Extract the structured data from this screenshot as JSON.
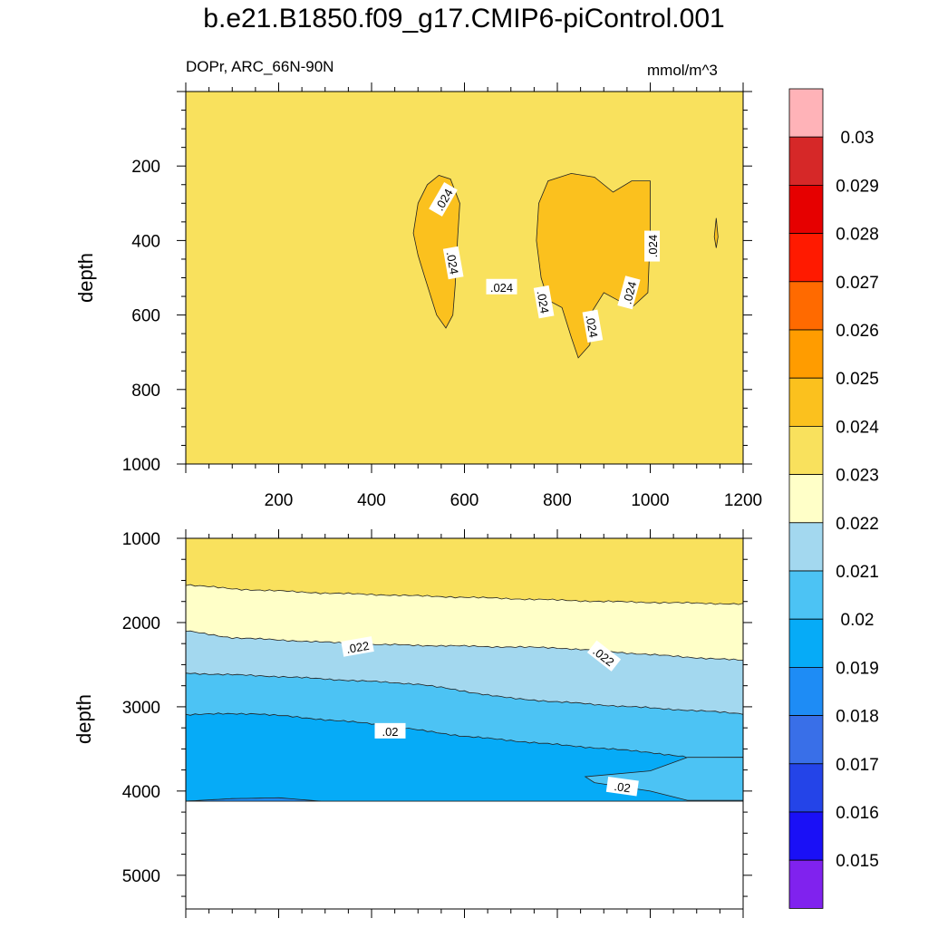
{
  "chart_data": [
    {
      "type": "heatmap",
      "title": "b.e21.B1850.f09_g17.CMIP6-piControl.001",
      "subtitle_left": "DOPr, ARC_66N-90N",
      "subtitle_right": "mmol/m^3",
      "ylabel": "depth",
      "xlabel": "",
      "xlim": [
        0,
        1200
      ],
      "ylim": [
        1000,
        0
      ],
      "x_ticks": [
        200,
        400,
        600,
        800,
        1000,
        1200
      ],
      "y_ticks": [
        200,
        400,
        600,
        800,
        1000
      ],
      "background_value": 0.0235,
      "regions": [
        {
          "name": "patch-1",
          "level": 0.024,
          "points": [
            [
              490,
              380
            ],
            [
              500,
              300
            ],
            [
              520,
              250
            ],
            [
              545,
              225
            ],
            [
              570,
              235
            ],
            [
              590,
              300
            ],
            [
              585,
              400
            ],
            [
              580,
              520
            ],
            [
              575,
              600
            ],
            [
              560,
              635
            ],
            [
              540,
              600
            ],
            [
              515,
              500
            ],
            [
              500,
              440
            ]
          ]
        },
        {
          "name": "patch-2",
          "level": 0.024,
          "points": [
            [
              755,
              400
            ],
            [
              760,
              300
            ],
            [
              780,
              240
            ],
            [
              830,
              220
            ],
            [
              880,
              230
            ],
            [
              920,
              270
            ],
            [
              960,
              240
            ],
            [
              1000,
              240
            ],
            [
              1000,
              380
            ],
            [
              995,
              540
            ],
            [
              960,
              580
            ],
            [
              930,
              560
            ],
            [
              900,
              540
            ],
            [
              875,
              590
            ],
            [
              870,
              680
            ],
            [
              845,
              715
            ],
            [
              830,
              660
            ],
            [
              810,
              580
            ],
            [
              780,
              560
            ],
            [
              765,
              500
            ]
          ]
        },
        {
          "name": "spike",
          "level": 0.024,
          "points": [
            [
              1138,
              390
            ],
            [
              1142,
              340
            ],
            [
              1146,
              390
            ],
            [
              1142,
              420
            ]
          ]
        }
      ],
      "contour_labels": [
        {
          "text": ".024",
          "x": 555,
          "y": 290,
          "angle": -60
        },
        {
          "text": ".024",
          "x": 575,
          "y": 460,
          "angle": 80
        },
        {
          "text": ".024",
          "x": 680,
          "y": 525,
          "angle": 0
        },
        {
          "text": ".024",
          "x": 770,
          "y": 565,
          "angle": 80
        },
        {
          "text": ".024",
          "x": 875,
          "y": 630,
          "angle": 80
        },
        {
          "text": ".024",
          "x": 955,
          "y": 540,
          "angle": -75
        },
        {
          "text": ".024",
          "x": 1005,
          "y": 415,
          "angle": -90
        }
      ]
    },
    {
      "type": "heatmap",
      "title": "",
      "ylabel": "depth",
      "xlabel": "",
      "xlim": [
        0,
        1200
      ],
      "ylim": [
        5400,
        1000
      ],
      "y_ticks": [
        1000,
        2000,
        3000,
        4000,
        5000
      ],
      "ocean_floor_depth": 4120,
      "bands": [
        {
          "level": 0.0235,
          "top_x": [
            0,
            1200
          ],
          "top_y": [
            1000,
            1000
          ]
        },
        {
          "level": 0.0225,
          "top_x": [
            0,
            100,
            300,
            600,
            900,
            1200
          ],
          "top_y": [
            1550,
            1600,
            1650,
            1700,
            1750,
            1780
          ]
        },
        {
          "level": 0.0215,
          "top_x": [
            0,
            100,
            400,
            800,
            1050,
            1200
          ],
          "top_y": [
            2100,
            2180,
            2260,
            2300,
            2400,
            2450
          ]
        },
        {
          "level": 0.0205,
          "top_x": [
            0,
            200,
            500,
            700,
            900,
            1200
          ],
          "top_y": [
            2600,
            2640,
            2730,
            2900,
            2980,
            3080
          ]
        },
        {
          "level": 0.0195,
          "top_x": [
            0,
            150,
            400,
            600,
            800,
            1000,
            1080
          ],
          "top_y": [
            3090,
            3080,
            3200,
            3350,
            3450,
            3540,
            3600
          ]
        },
        {
          "level": 0.0185,
          "top_x": [
            0,
            100,
            200,
            290
          ],
          "top_y": [
            4120,
            4090,
            4080,
            4120
          ]
        }
      ],
      "wedge_0205": {
        "level": 0.0205,
        "points": [
          [
            1080,
            3600
          ],
          [
            1000,
            3760
          ],
          [
            860,
            3830
          ],
          [
            880,
            3900
          ],
          [
            1000,
            4000
          ],
          [
            1080,
            4110
          ],
          [
            1200,
            4110
          ],
          [
            1200,
            3600
          ]
        ]
      },
      "contour_labels": [
        {
          "text": ".022",
          "x": 370,
          "y": 2290,
          "angle": -10
        },
        {
          "text": ".022",
          "x": 900,
          "y": 2400,
          "angle": 38
        },
        {
          "text": ".02",
          "x": 440,
          "y": 3290,
          "angle": 0
        },
        {
          "text": ".02",
          "x": 940,
          "y": 3950,
          "angle": 8
        }
      ]
    }
  ],
  "colorbar": {
    "labels": [
      "0.03",
      "0.029",
      "0.028",
      "0.027",
      "0.026",
      "0.025",
      "0.024",
      "0.023",
      "0.022",
      "0.021",
      "0.02",
      "0.019",
      "0.018",
      "0.017",
      "0.016",
      "0.015"
    ],
    "colors": [
      "#FFB3B8",
      "#D62828",
      "#E60000",
      "#FF1A00",
      "#FF6A00",
      "#FF9C00",
      "#FBC11E",
      "#F9E15D",
      "#FFFFC8",
      "#A3D8EF",
      "#4CC3F4",
      "#06ABF7",
      "#1E8CF5",
      "#396FE8",
      "#2444E8",
      "#1A10F6",
      "#8022EE"
    ]
  }
}
